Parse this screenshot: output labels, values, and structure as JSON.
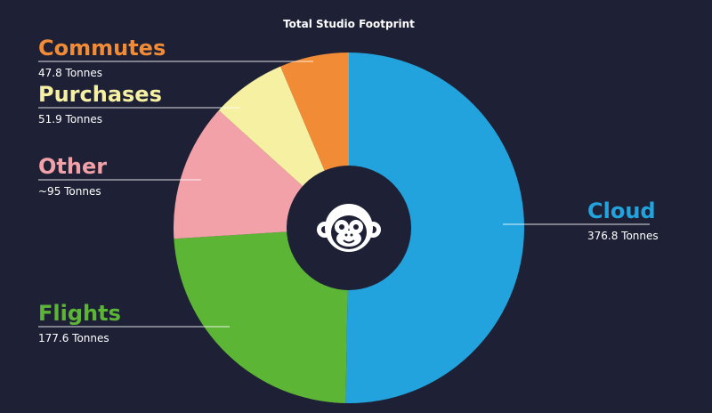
{
  "chart_data": {
    "type": "pie",
    "title": "Total Studio Footprint",
    "slices": [
      {
        "label": "Cloud",
        "value_label": "376.8 Tonnes",
        "value": 376.8,
        "color": "#22a3dd"
      },
      {
        "label": "Flights",
        "value_label": "177.6 Tonnes",
        "value": 177.6,
        "color": "#5db536"
      },
      {
        "label": "Other",
        "value_label": "~95 Tonnes",
        "value": 95,
        "color": "#f3a1a8"
      },
      {
        "label": "Purchases",
        "value_label": "51.9 Tonnes",
        "value": 51.9,
        "color": "#f6f0a2"
      },
      {
        "label": "Commutes",
        "value_label": "47.8 Tonnes",
        "value": 47.8,
        "color": "#f28b35"
      }
    ],
    "center_icon": "monkey-face-icon",
    "colors": {
      "background": "#1e2136",
      "hole": "#1e2136",
      "text": "#ffffff"
    }
  }
}
